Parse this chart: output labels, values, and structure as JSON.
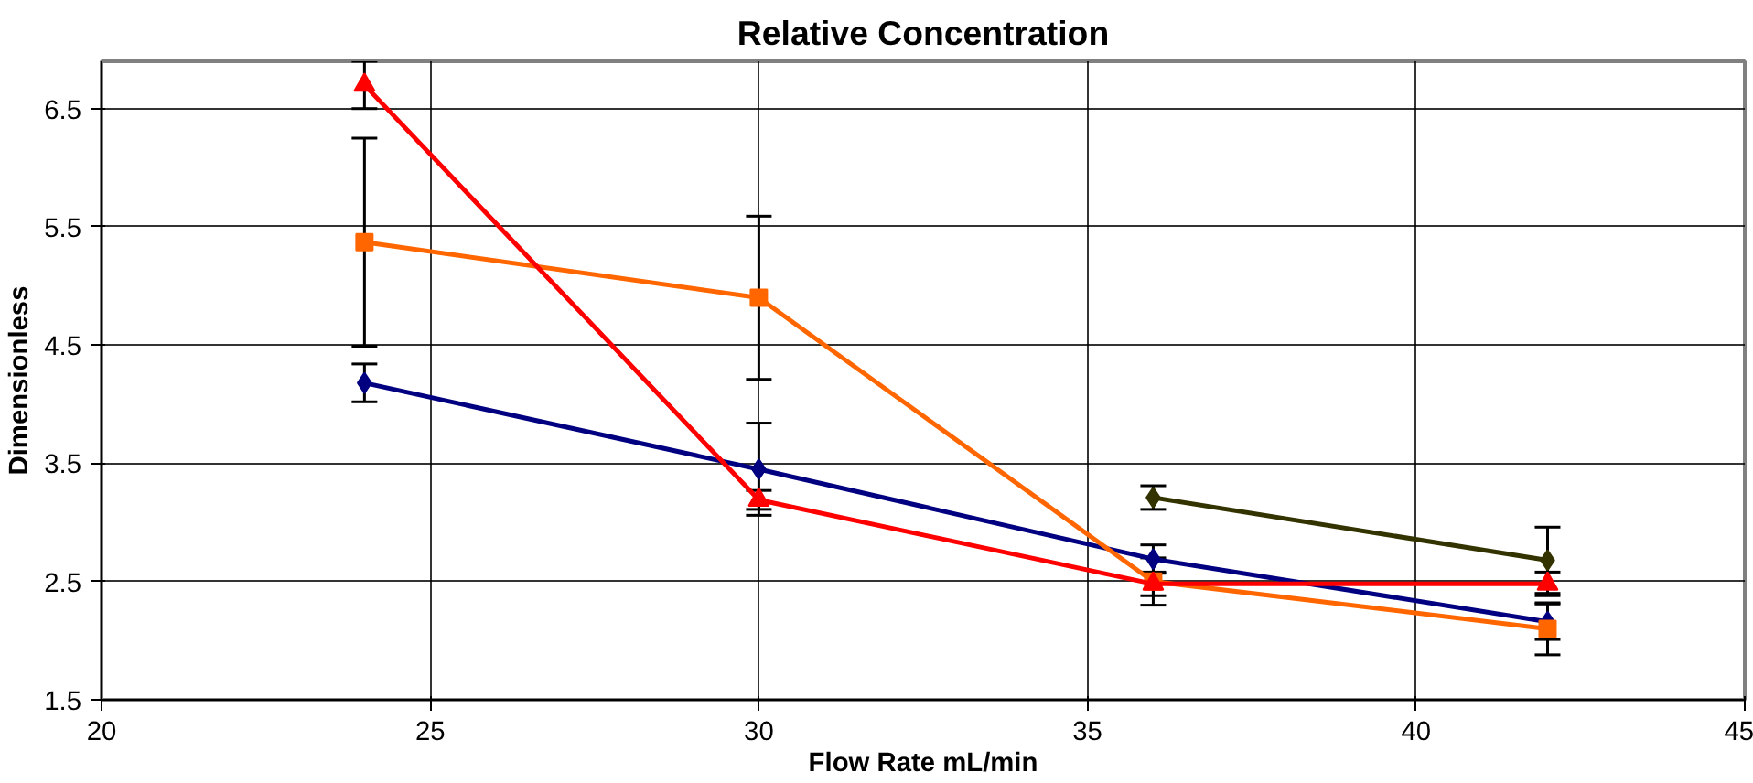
{
  "chart_data": {
    "type": "line",
    "title": "Relative Concentration",
    "xlabel": "Flow Rate mL/min",
    "ylabel": "Dimensionless",
    "x": [
      24,
      30,
      36,
      42
    ],
    "series": [
      {
        "color": "#000080",
        "marker": "diamond",
        "values": [
          4.18,
          3.45,
          2.69,
          2.16
        ],
        "errors": [
          0.16,
          0.39,
          0.12,
          0.15
        ]
      },
      {
        "color": "#ff6600",
        "marker": "square",
        "values": [
          5.37,
          4.9,
          2.5,
          2.1
        ],
        "errors": [
          0.88,
          0.69,
          0.2,
          0.22
        ]
      },
      {
        "color": "#ff0000",
        "marker": "triangle",
        "values": [
          6.7,
          3.19,
          2.48,
          2.48
        ],
        "errors": [
          0.2,
          0.08,
          0.1,
          0.1
        ]
      },
      {
        "color": "#333300",
        "marker": "diamond",
        "x": [
          36,
          42
        ],
        "values": [
          3.21,
          2.68
        ],
        "errors": [
          0.1,
          0.28
        ]
      }
    ],
    "xlim": [
      20,
      45
    ],
    "xticks": [
      20,
      25,
      30,
      35,
      40,
      45
    ],
    "ylim": [
      1.5,
      6.9
    ],
    "yticks": [
      1.5,
      2.5,
      3.5,
      4.5,
      5.5,
      6.5
    ],
    "grid": true,
    "line_style": "solid"
  }
}
